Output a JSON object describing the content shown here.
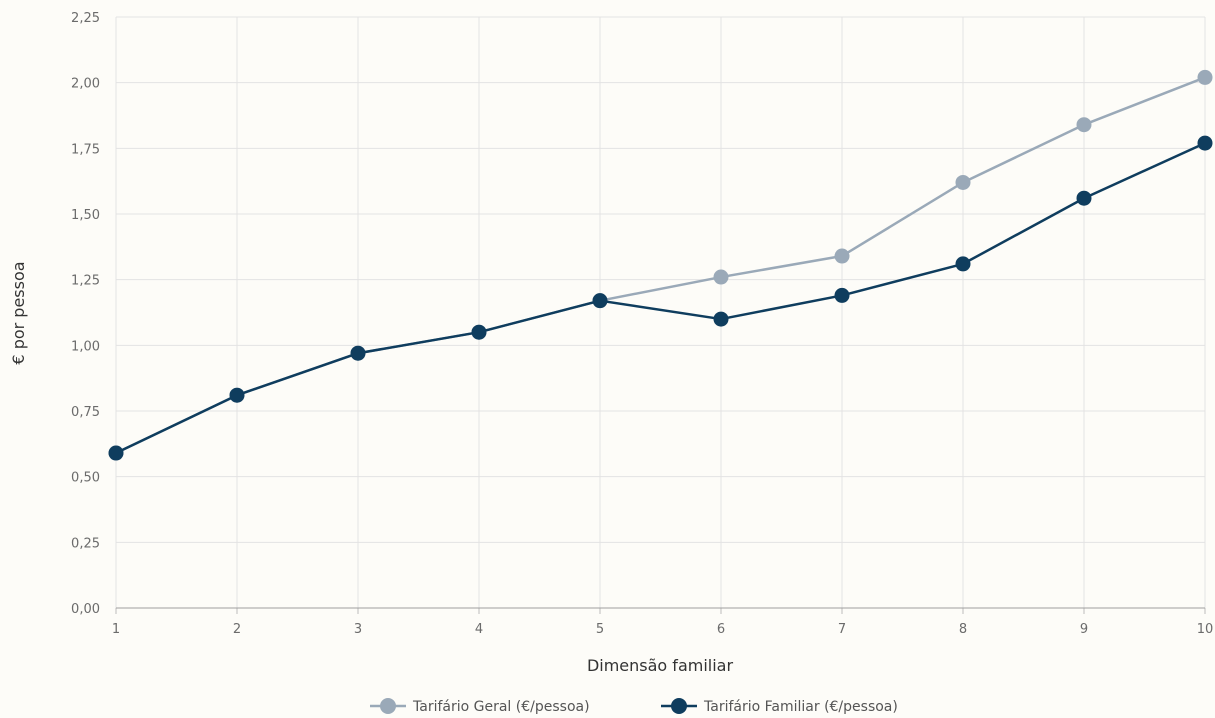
{
  "chart_data": {
    "type": "line",
    "x": [
      1,
      2,
      3,
      4,
      5,
      6,
      7,
      8,
      9,
      10
    ],
    "categories": [
      "1",
      "2",
      "3",
      "4",
      "5",
      "6",
      "7",
      "8",
      "9",
      "10"
    ],
    "series": [
      {
        "name": "Tarifário Geral (€/pessoa)",
        "color": "#9aa9b8",
        "values": [
          0.59,
          0.81,
          0.97,
          1.05,
          1.17,
          1.26,
          1.34,
          1.62,
          1.84,
          2.02
        ]
      },
      {
        "name": "Tarifário Familiar (€/pessoa)",
        "color": "#0f3d5e",
        "values": [
          0.59,
          0.81,
          0.97,
          1.05,
          1.17,
          1.1,
          1.19,
          1.31,
          1.56,
          1.77
        ]
      }
    ],
    "xlabel": "Dimensão familiar",
    "ylabel": "€ por pessoa",
    "ylim": [
      0,
      2.25
    ],
    "yticks": [
      0,
      0.25,
      0.5,
      0.75,
      1.0,
      1.25,
      1.5,
      1.75,
      2.0,
      2.25
    ],
    "ytick_labels": [
      "0,00",
      "0,25",
      "0,50",
      "0,75",
      "1,00",
      "1,25",
      "1,50",
      "1,75",
      "2,00",
      "2,25"
    ],
    "grid": true,
    "legend_position": "bottom-center"
  }
}
